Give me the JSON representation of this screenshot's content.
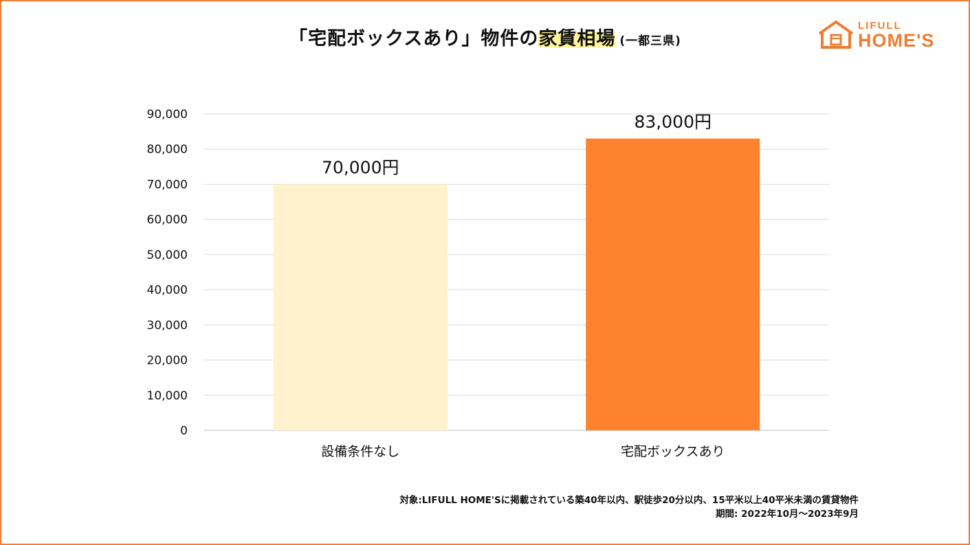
{
  "header": {
    "title_main": "「宅配ボックスあり」物件の",
    "title_highlight": "家賃相場",
    "title_sub": "(一都三県)"
  },
  "logo": {
    "line1": "LIFULL",
    "line2": "HOME'S"
  },
  "colors": {
    "accent": "#ed7d31",
    "bar_light": "#fff2cc",
    "bar_dark": "#ff832f",
    "highlight": "#fff59a"
  },
  "chart_data": {
    "type": "bar",
    "title": "「宅配ボックスあり」物件の家賃相場(一都三県)",
    "categories": [
      "設備条件なし",
      "宅配ボックスあり"
    ],
    "values": [
      70000,
      83000
    ],
    "data_labels": [
      "70,000円",
      "83,000円"
    ],
    "bar_colors": [
      "#fff2cc",
      "#ff832f"
    ],
    "ylim": [
      0,
      90000
    ],
    "yticks": [
      0,
      10000,
      20000,
      30000,
      40000,
      50000,
      60000,
      70000,
      80000,
      90000
    ],
    "ytick_labels": [
      "0",
      "10,000",
      "20,000",
      "30,000",
      "40,000",
      "50,000",
      "60,000",
      "70,000",
      "80,000",
      "90,000"
    ],
    "grid": true,
    "xlabel": "",
    "ylabel": ""
  },
  "footnote": {
    "line1": "対象:LIFULL HOME'Sに掲載されている築40年以内、駅徒歩20分以内、15平米以上40平米未満の賃貸物件",
    "line2": "期間: 2022年10月～2023年9月"
  }
}
